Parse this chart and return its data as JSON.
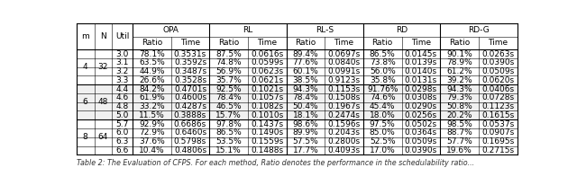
{
  "rows": [
    [
      "4",
      "32",
      "3.0",
      "78.1%",
      "0.3531s",
      "87.5%",
      "0.0616s",
      "89.4%",
      "0.0697s",
      "86.5%",
      "0.0145s",
      "90.1%",
      "0.0263s"
    ],
    [
      "",
      "",
      "3.1",
      "63.5%",
      "0.3592s",
      "74.8%",
      "0.0599s",
      "77.6%",
      "0.0840s",
      "73.8%",
      "0.0139s",
      "78.9%",
      "0.0390s"
    ],
    [
      "",
      "",
      "3.2",
      "44.9%",
      "0.3487s",
      "56.9%",
      "0.0623s",
      "60.1%",
      "0.0991s",
      "56.0%",
      "0.0140s",
      "61.2%",
      "0.0509s"
    ],
    [
      "",
      "",
      "3.3",
      "26.6%",
      "0.3528s",
      "35.7%",
      "0.0621s",
      "38.5%",
      "0.9123s",
      "35.8%",
      "0.0131s",
      "39.2%",
      "0.0620s"
    ],
    [
      "6",
      "48",
      "4.4",
      "84.2%",
      "0.4701s",
      "92.5%",
      "0.1021s",
      "94.3%",
      "0.1153s",
      "91.76%",
      "0.0298s",
      "94.3%",
      "0.0406s"
    ],
    [
      "",
      "",
      "4.6",
      "61.9%",
      "0.4600s",
      "78.4%",
      "0.1057s",
      "78.4%",
      "0.1508s",
      "74.6%",
      "0.0308s",
      "79.3%",
      "0.0728s"
    ],
    [
      "",
      "",
      "4.8",
      "33.2%",
      "0.4287s",
      "46.5%",
      "0.1082s",
      "50.4%",
      "0.1967s",
      "45.4%",
      "0.0290s",
      "50.8%",
      "0.1123s"
    ],
    [
      "",
      "",
      "5.0",
      "11.5%",
      "0.3888s",
      "15.7%",
      "0.1010s",
      "18.1%",
      "0.2474s",
      "18.0%",
      "0.0256s",
      "20.2%",
      "0.1615s"
    ],
    [
      "8",
      "64",
      "5.7",
      "92.9%",
      "0.6686s",
      "97.8%",
      "0.1437s",
      "98.6%",
      "0.1596s",
      "97.5%",
      "0.0502s",
      "98.5%",
      "0.0537s"
    ],
    [
      "",
      "",
      "6.0",
      "72.9%",
      "0.6460s",
      "86.5%",
      "0.1490s",
      "89.9%",
      "0.2043s",
      "85.0%",
      "0.0364s",
      "88.7%",
      "0.0907s"
    ],
    [
      "",
      "",
      "6.3",
      "37.6%",
      "0.5798s",
      "53.5%",
      "0.1559s",
      "57.5%",
      "0.2800s",
      "52.5%",
      "0.0509s",
      "57.7%",
      "0.1695s"
    ],
    [
      "",
      "",
      "6.6",
      "10.4%",
      "0.4806s",
      "15.1%",
      "0.1488s",
      "17.7%",
      "0.4093s",
      "17.0%",
      "0.0390s",
      "19.6%",
      "0.2715s"
    ]
  ],
  "col_groups": [
    "OPA",
    "RL",
    "RL-S",
    "RD",
    "RD-G"
  ],
  "header1": [
    "m",
    "N",
    "Util",
    "OPA",
    "RL",
    "RL-S",
    "RD",
    "RD-G"
  ],
  "header2": [
    "Ratio",
    "Time",
    "Ratio",
    "Time",
    "Ratio",
    "Time",
    "Ratio",
    "Time",
    "Ratio",
    "Time"
  ],
  "caption": "Table 2: The Evaluation of CFPS. For each method, Ratio denotes the performance in the schedulability ratio...",
  "font_size": 6.5,
  "caption_font_size": 5.8,
  "bg_white": "#ffffff",
  "bg_gray": "#eeeeee",
  "border_thin": 0.5,
  "border_thick": 1.0
}
